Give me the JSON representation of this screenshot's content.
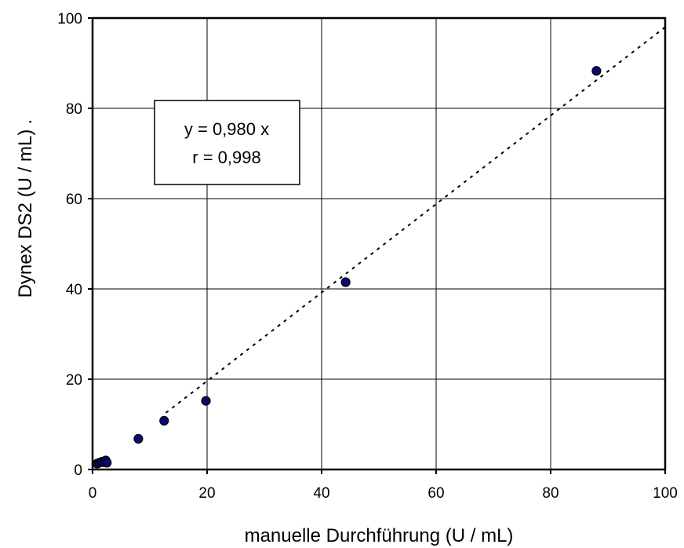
{
  "chart_data": {
    "type": "scatter",
    "title": "",
    "xlabel": "manuelle Durchführung (U / mL)",
    "ylabel": "Dynex DS2 (U / mL)",
    "ylabel_suffix": ".",
    "xlim": [
      0,
      100
    ],
    "ylim": [
      0,
      100
    ],
    "x_ticks": [
      0,
      20,
      40,
      60,
      80,
      100
    ],
    "y_ticks": [
      0,
      20,
      40,
      60,
      80,
      100
    ],
    "grid": true,
    "series": [
      {
        "x": [
          0.8,
          1.2,
          1.6,
          2.0,
          2.3,
          2.5,
          8.0,
          12.5,
          19.8,
          44.2,
          88.0
        ],
        "y": [
          1.3,
          1.5,
          1.7,
          1.6,
          2.0,
          1.5,
          6.8,
          10.8,
          15.2,
          41.5,
          88.3
        ],
        "color": "#0a0a6e"
      }
    ],
    "trendline": {
      "style": "dotted",
      "slope": 0.98,
      "x_range": [
        12.8,
        100
      ]
    },
    "annotation": {
      "lines": [
        "y = 0,980 x",
        "r = 0,998"
      ]
    }
  }
}
